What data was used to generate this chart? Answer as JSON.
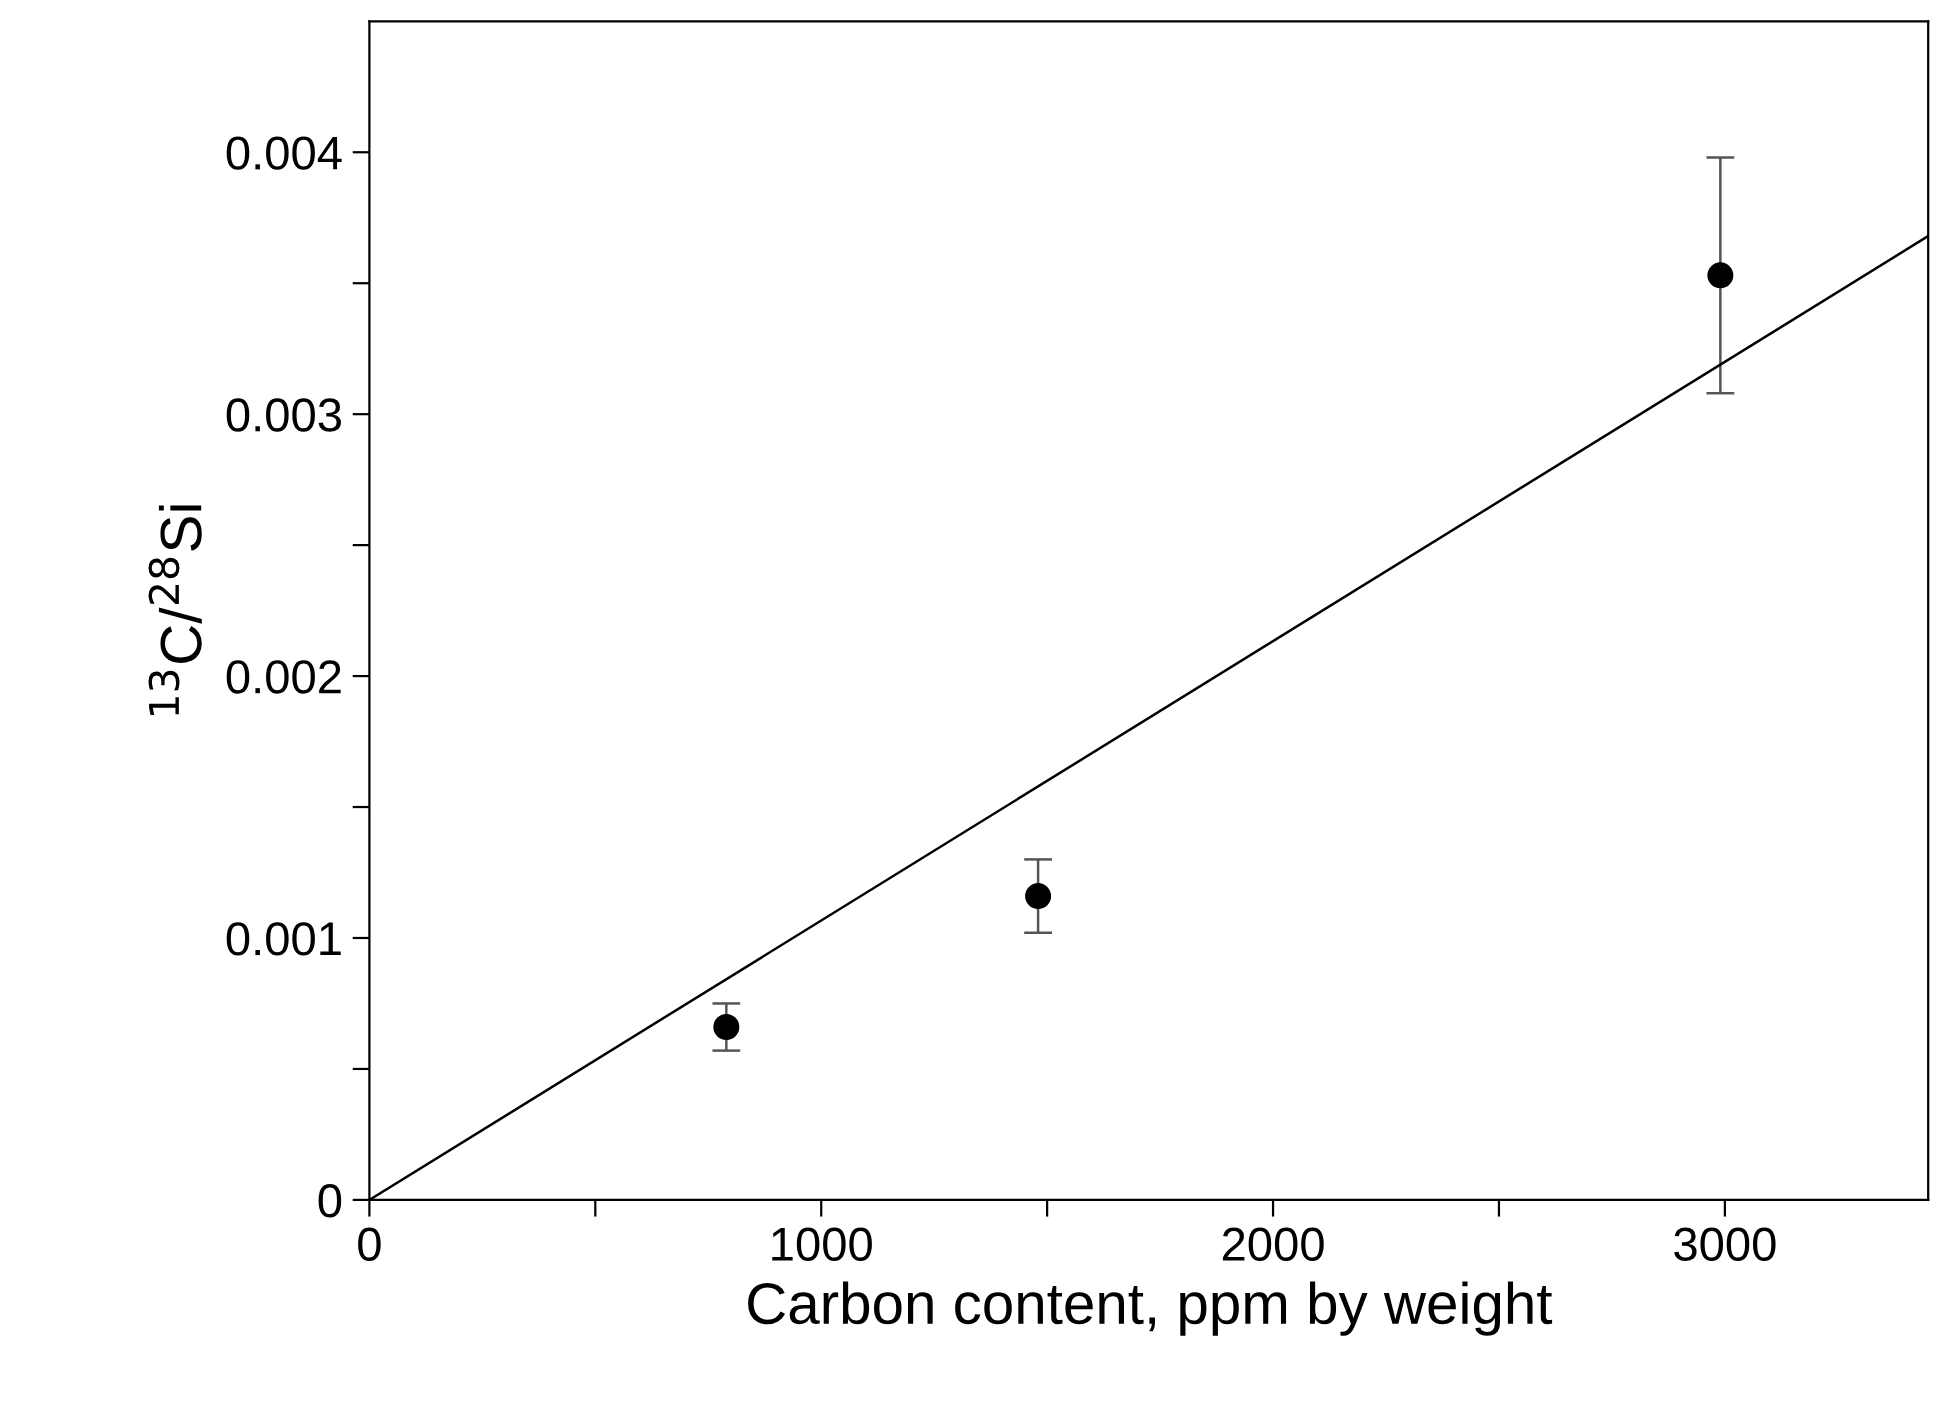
{
  "chart_data": {
    "type": "scatter",
    "xlabel": "Carbon content, ppm by weight",
    "ylabel": "$^{13}$C/$^{28}$Si",
    "xlim": [
      0,
      3450
    ],
    "ylim": [
      0,
      0.0045
    ],
    "xticks": [
      0,
      {
        "value": 500,
        "label": null
      },
      1000,
      {
        "value": 1500,
        "label": null
      },
      2000,
      {
        "value": 2500,
        "label": null
      },
      3000
    ],
    "yticks": [
      {
        "value": 0,
        "label": "0"
      },
      {
        "value": 0.0005,
        "label": null
      },
      {
        "value": 0.001,
        "label": "0.001"
      },
      {
        "value": 0.0015,
        "label": null
      },
      {
        "value": 0.002,
        "label": "0.002"
      },
      {
        "value": 0.0025,
        "label": null
      },
      {
        "value": 0.003,
        "label": "0.003"
      },
      {
        "value": 0.0035,
        "label": null
      },
      {
        "value": 0.004,
        "label": "0.004"
      }
    ],
    "grid": false,
    "legend": false,
    "series": [
      {
        "marker": "circle",
        "color": "#000000",
        "x": [
          790,
          1480,
          2990
        ],
        "values": [
          0.00066,
          0.00116,
          0.00353
        ],
        "errors": [
          9e-05,
          [
            0.00102,
            0.0013
          ],
          [
            0.00308,
            0.00398
          ]
        ]
      },
      {
        "type": "line",
        "color": "#000000",
        "x": [
          0,
          3450
        ],
        "values": [
          0,
          0.00368
        ],
        "line_style": "solid"
      }
    ]
  }
}
